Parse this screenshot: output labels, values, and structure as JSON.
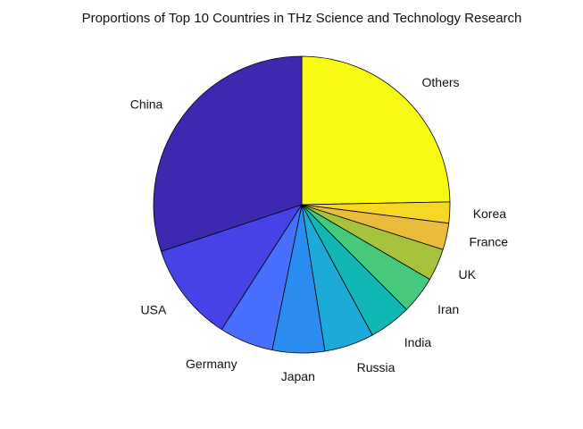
{
  "chart_data": {
    "type": "pie",
    "title": "Proportions of Top 10 Countries in THz Science and Technology Research",
    "start_angle_deg": 90,
    "direction": "clockwise",
    "slices": [
      {
        "label": "Others",
        "value": 24.7,
        "color": "#f9fa14"
      },
      {
        "label": "Korea",
        "value": 2.3,
        "color": "#f5d724"
      },
      {
        "label": "France",
        "value": 2.9,
        "color": "#e9bc3b"
      },
      {
        "label": "UK",
        "value": 3.5,
        "color": "#a6c33b"
      },
      {
        "label": "Iran",
        "value": 4.1,
        "color": "#46c97c"
      },
      {
        "label": "India",
        "value": 4.6,
        "color": "#11b8b3"
      },
      {
        "label": "Russia",
        "value": 5.4,
        "color": "#1caad8"
      },
      {
        "label": "Japan",
        "value": 5.7,
        "color": "#2a8cee"
      },
      {
        "label": "Germany",
        "value": 5.9,
        "color": "#4870fe"
      },
      {
        "label": "USA",
        "value": 10.8,
        "color": "#4742e6"
      },
      {
        "label": "China",
        "value": 30.1,
        "color": "#3d29b0"
      }
    ]
  }
}
